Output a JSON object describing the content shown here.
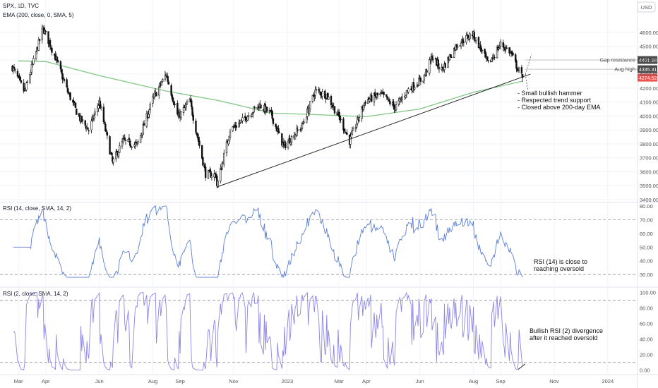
{
  "header": {
    "symbol_line": "SPX, 1D, TVC",
    "indicator_line": "EMA (200, close, 0, SMA, 5)",
    "currency_button": "USD"
  },
  "colors": {
    "up": "#000000",
    "ema": "#81c784",
    "rsi14": "#5b7fd6",
    "rsi2": "#8d86e6",
    "last_price_badge": "#ef5350",
    "level_badge": "#4a4a4a"
  },
  "chart_data": [
    {
      "type": "candlestick",
      "title": "SPX, 1D, TVC",
      "ylim": [
        3400,
        4700
      ],
      "y_ticks": [
        "4600.00",
        "4500.00",
        "4400.00",
        "4300.00",
        "4200.00",
        "4100.00",
        "4000.00",
        "3900.00",
        "3800.00",
        "3700.00",
        "3600.00",
        "3500.00",
        "3400.00"
      ],
      "x_ticks": [
        "Mar",
        "Apr",
        "Jun",
        "Aug",
        "Sep",
        "Nov",
        "2023",
        "Mar",
        "Apr",
        "Jun",
        "Aug",
        "Sep",
        "Nov",
        "2024"
      ],
      "ohlc_path_approx": [
        [
          "2022-02-22",
          4350
        ],
        [
          "2022-03-08",
          4170
        ],
        [
          "2022-03-29",
          4630
        ],
        [
          "2022-04-12",
          4420
        ],
        [
          "2022-04-26",
          4175
        ],
        [
          "2022-05-09",
          3990
        ],
        [
          "2022-05-20",
          3900
        ],
        [
          "2022-06-01",
          4100
        ],
        [
          "2022-06-16",
          3666
        ],
        [
          "2022-06-28",
          3820
        ],
        [
          "2022-07-14",
          3790
        ],
        [
          "2022-08-01",
          4120
        ],
        [
          "2022-08-16",
          4300
        ],
        [
          "2022-08-30",
          3990
        ],
        [
          "2022-09-12",
          4110
        ],
        [
          "2022-09-30",
          3585
        ],
        [
          "2022-10-12",
          3577
        ],
        [
          "2022-10-13",
          3500
        ],
        [
          "2022-10-28",
          3900
        ],
        [
          "2022-11-10",
          3960
        ],
        [
          "2022-11-30",
          4080
        ],
        [
          "2022-12-13",
          4019
        ],
        [
          "2022-12-28",
          3780
        ],
        [
          "2023-01-18",
          3930
        ],
        [
          "2023-02-02",
          4179
        ],
        [
          "2023-02-15",
          4150
        ],
        [
          "2023-03-02",
          3980
        ],
        [
          "2023-03-13",
          3820
        ],
        [
          "2023-03-31",
          4109
        ],
        [
          "2023-04-18",
          4155
        ],
        [
          "2023-05-04",
          4060
        ],
        [
          "2023-05-19",
          4190
        ],
        [
          "2023-06-05",
          4270
        ],
        [
          "2023-06-15",
          4425
        ],
        [
          "2023-06-26",
          4330
        ],
        [
          "2023-07-13",
          4510
        ],
        [
          "2023-07-31",
          4590
        ],
        [
          "2023-08-08",
          4500
        ],
        [
          "2023-08-18",
          4370
        ],
        [
          "2023-09-01",
          4515
        ],
        [
          "2023-09-12",
          4460
        ],
        [
          "2023-09-21",
          4330
        ],
        [
          "2023-09-26",
          4274.52
        ]
      ],
      "series": [
        {
          "name": "EMA (200, close, 0, SMA, 5)",
          "x": [
            "2022-03-01",
            "2022-04-01",
            "2022-06-01",
            "2022-08-15",
            "2022-10-15",
            "2022-12-15",
            "2023-02-01",
            "2023-04-01",
            "2023-06-01",
            "2023-08-01",
            "2023-09-26"
          ],
          "values": [
            4395,
            4390,
            4290,
            4180,
            4110,
            4020,
            4010,
            3995,
            4050,
            4170,
            4250
          ]
        }
      ],
      "annotations": {
        "levels": [
          {
            "label": "Gap resistance",
            "value": "4401.38"
          },
          {
            "label": "Aug high",
            "value": "4335.31"
          },
          {
            "label": "",
            "value": "4274.52"
          }
        ],
        "notes": [
          "- Small bullish hammer",
          "- Respected trend support",
          "- Closed above 200-day EMA"
        ],
        "trendline": {
          "from": [
            "2022-10-13",
            3491
          ],
          "to": [
            "2023-10-05",
            4300
          ]
        }
      }
    },
    {
      "type": "line",
      "title": "RSI (14, close, SMA, 14, 2)",
      "ylim": [
        27,
        81
      ],
      "y_ticks": [
        "80.00",
        "70.00",
        "60.00",
        "50.00",
        "40.00",
        "30.00"
      ],
      "bands": [
        70,
        30
      ],
      "series": [
        {
          "name": "RSI (14, close, SMA, 14, 2)",
          "x": [
            "2022-02-22",
            "2022-03-08",
            "2022-03-29",
            "2022-05-12",
            "2022-06-16",
            "2022-08-16",
            "2022-09-30",
            "2022-10-13",
            "2022-11-30",
            "2022-12-28",
            "2023-02-02",
            "2023-03-13",
            "2023-04-18",
            "2023-05-04",
            "2023-06-15",
            "2023-07-31",
            "2023-08-18",
            "2023-09-01",
            "2023-09-26"
          ],
          "values": [
            52,
            42,
            66,
            36,
            35,
            72,
            31,
            30,
            68,
            40,
            69,
            38,
            64,
            46,
            75,
            77,
            38,
            56,
            32
          ]
        }
      ],
      "annotation": "RSI (14) is close to\nreaching oversold"
    },
    {
      "type": "line",
      "title": "RSI (2, close, SMA, 14, 2)",
      "ylim": [
        -3,
        104
      ],
      "y_ticks": [
        "100.00",
        "80.00",
        "60.00",
        "40.00",
        "20.00",
        "0.00"
      ],
      "bands": [
        90,
        10
      ],
      "series": [
        {
          "name": "RSI (2, close, SMA, 14, 2)",
          "x": [
            "2022-02-22",
            "2023-09-26"
          ],
          "values": [
            95,
            12
          ]
        }
      ],
      "annotation": "Bullish RSI (2) divergence\nafter it reached oversold"
    }
  ]
}
